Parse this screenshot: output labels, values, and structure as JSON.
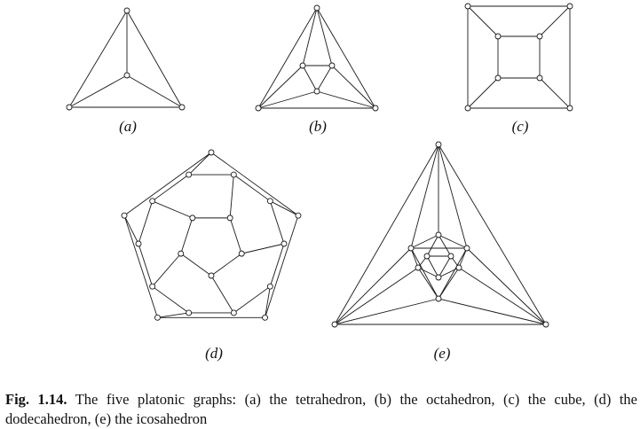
{
  "figure": {
    "subfigures": [
      {
        "id": "a",
        "label": "(a)",
        "name": "tetrahedron",
        "vertices": 4,
        "edges": 6
      },
      {
        "id": "b",
        "label": "(b)",
        "name": "octahedron",
        "vertices": 6,
        "edges": 12
      },
      {
        "id": "c",
        "label": "(c)",
        "name": "cube",
        "vertices": 8,
        "edges": 12
      },
      {
        "id": "d",
        "label": "(d)",
        "name": "dodecahedron",
        "vertices": 20,
        "edges": 30
      },
      {
        "id": "e",
        "label": "(e)",
        "name": "icosahedron",
        "vertices": 12,
        "edges": 30
      }
    ],
    "caption": {
      "label": "Fig. 1.14.",
      "text": "The five platonic graphs: (a) the tetrahedron, (b) the octahedron, (c) the cube, (d) the dodecahedron, (e) the icosahedron"
    }
  }
}
